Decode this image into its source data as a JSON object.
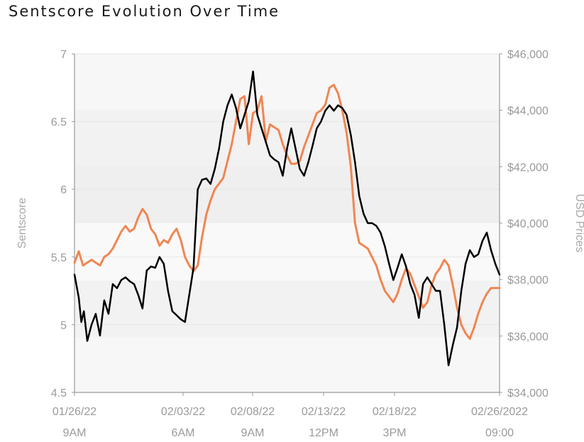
{
  "chart_data": {
    "type": "line",
    "title": "Sentscore Evolution Over Time",
    "ylabel": "Sentscore",
    "y2label": "USD Prices",
    "ylim": [
      4.5,
      7
    ],
    "y2lim": [
      34000,
      46000
    ],
    "yticks": [
      "4.5",
      "5",
      "5.5",
      "6",
      "6.5",
      "7"
    ],
    "y2ticks": [
      "$34,000",
      "$36,000",
      "$38,000",
      "$40,000",
      "$42,000",
      "$44,000",
      "$46,000"
    ],
    "xticks": [
      {
        "date": "01/26/22",
        "time": "9AM"
      },
      {
        "date": "02/03/22",
        "time": "6AM"
      },
      {
        "date": "02/08/22",
        "time": "9AM"
      },
      {
        "date": "02/13/22",
        "time": "12PM"
      },
      {
        "date": "02/18/22",
        "time": "3PM"
      },
      {
        "date": "02/26/2022",
        "time": "09:00"
      }
    ],
    "series": [
      {
        "axis": "left",
        "color": "#000000",
        "x": [
          0,
          1,
          1.6,
          2.2,
          3,
          4,
          5,
          6,
          7,
          8,
          9,
          10,
          11,
          12,
          13,
          14,
          15,
          16,
          17,
          18,
          19,
          20,
          21,
          22,
          23,
          24,
          25,
          26,
          27,
          28,
          29,
          30,
          31,
          32,
          33,
          34,
          35,
          36,
          37,
          38,
          39,
          40,
          41,
          42,
          43,
          44,
          45,
          46,
          47,
          48,
          49,
          50,
          51,
          52,
          53,
          54,
          55,
          56,
          57,
          58,
          59,
          60,
          61,
          62,
          63,
          64,
          65,
          66,
          67,
          68,
          69,
          70,
          71,
          72,
          73,
          74,
          75,
          76,
          77,
          78,
          79,
          80,
          81,
          82,
          83,
          84,
          85,
          86,
          87,
          88,
          89,
          90,
          91,
          92,
          93,
          94,
          95,
          96,
          97,
          98,
          99,
          100
        ],
        "values": [
          5.37,
          5.2,
          5.02,
          5.1,
          4.88,
          5.0,
          5.08,
          4.92,
          5.18,
          5.08,
          5.3,
          5.27,
          5.33,
          5.35,
          5.32,
          5.3,
          5.22,
          5.12,
          5.4,
          5.43,
          5.42,
          5.5,
          5.45,
          5.25,
          5.1,
          5.07,
          5.04,
          5.02,
          5.22,
          5.42,
          6.0,
          6.07,
          6.08,
          6.04,
          6.15,
          6.3,
          6.5,
          6.62,
          6.7,
          6.6,
          6.45,
          6.55,
          6.65,
          6.87,
          6.55,
          6.45,
          6.35,
          6.25,
          6.22,
          6.2,
          6.1,
          6.3,
          6.45,
          6.3,
          6.15,
          6.1,
          6.2,
          6.32,
          6.45,
          6.5,
          6.58,
          6.62,
          6.58,
          6.62,
          6.6,
          6.55,
          6.4,
          6.2,
          5.95,
          5.82,
          5.75,
          5.75,
          5.73,
          5.68,
          5.58,
          5.45,
          5.33,
          5.42,
          5.52,
          5.43,
          5.3,
          5.22,
          5.05,
          5.3,
          5.35,
          5.3,
          5.25,
          5.25,
          5.0,
          4.7,
          4.85,
          4.98,
          5.25,
          5.45,
          5.55,
          5.5,
          5.52,
          5.62,
          5.68,
          5.55,
          5.45,
          5.37
        ]
      },
      {
        "axis": "right",
        "color": "#F08652",
        "x": [
          0,
          1,
          2,
          3,
          4,
          5,
          6,
          7,
          8,
          9,
          10,
          11,
          12,
          13,
          14,
          15,
          16,
          17,
          18,
          19,
          20,
          21,
          22,
          23,
          24,
          25,
          26,
          27,
          28,
          29,
          30,
          31,
          32,
          33,
          34,
          35,
          36,
          37,
          38,
          39,
          40,
          41,
          42,
          43,
          44,
          45,
          46,
          47,
          48,
          49,
          50,
          51,
          52,
          53,
          54,
          55,
          56,
          57,
          58,
          59,
          60,
          61,
          62,
          63,
          64,
          65,
          66,
          67,
          68,
          69,
          70,
          71,
          72,
          73,
          74,
          75,
          76,
          77,
          78,
          79,
          80,
          81,
          82,
          83,
          84,
          85,
          86,
          87,
          88,
          89,
          90,
          91,
          92,
          93,
          94,
          95,
          96,
          97,
          98,
          99,
          100
        ],
        "values": [
          38.6,
          39.0,
          38.5,
          38.6,
          38.7,
          38.6,
          38.5,
          38.8,
          38.9,
          39.1,
          39.4,
          39.7,
          39.9,
          39.7,
          39.8,
          40.2,
          40.5,
          40.3,
          39.8,
          39.6,
          39.2,
          39.4,
          39.3,
          39.6,
          39.8,
          39.4,
          38.8,
          38.5,
          38.3,
          38.5,
          39.5,
          40.3,
          40.8,
          41.2,
          41.4,
          41.6,
          42.2,
          42.8,
          43.6,
          44.4,
          44.5,
          42.8,
          43.9,
          44.0,
          44.5,
          42.9,
          43.5,
          43.4,
          43.3,
          42.8,
          42.4,
          42.1,
          42.1,
          42.2,
          42.7,
          43.1,
          43.5,
          43.9,
          44.0,
          44.2,
          44.8,
          44.9,
          44.6,
          44.0,
          43.2,
          42.0,
          40.0,
          39.3,
          39.2,
          39.1,
          38.8,
          38.5,
          38.0,
          37.6,
          37.4,
          37.2,
          37.5,
          38.0,
          38.4,
          38.2,
          37.8,
          37.4,
          37.0,
          37.2,
          37.8,
          38.2,
          38.4,
          38.7,
          38.5,
          37.8,
          37.0,
          36.4,
          36.1,
          35.9,
          36.3,
          36.8,
          37.2,
          37.5,
          37.7,
          37.7,
          37.7
        ]
      }
    ]
  }
}
